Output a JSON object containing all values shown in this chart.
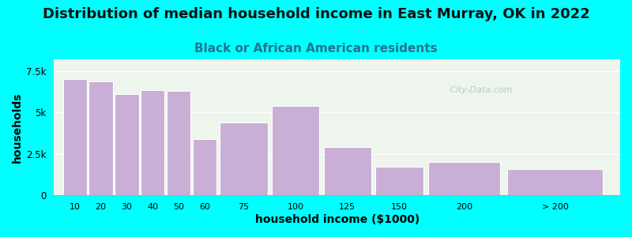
{
  "title": "Distribution of median household income in East Murray, OK in 2022",
  "subtitle": "Black or African American residents",
  "xlabel": "household income ($1000)",
  "ylabel": "households",
  "background_color": "#00FFFF",
  "plot_bg_top": "#e8f5e8",
  "plot_bg_bottom": "#f8f8ff",
  "bar_color": "#c9aed6",
  "bar_edge_color": "#ffffff",
  "categories": [
    "10",
    "20",
    "30",
    "40",
    "50",
    "60",
    "75",
    "100",
    "125",
    "150",
    "200",
    "> 200"
  ],
  "bar_heights": [
    7000,
    6850,
    6100,
    6350,
    6300,
    3400,
    4400,
    5400,
    2900,
    1700,
    2000,
    1600
  ],
  "bar_widths": [
    1,
    1,
    1,
    1,
    1,
    1,
    2,
    2,
    2,
    2,
    3,
    4
  ],
  "bar_lefts": [
    0,
    1,
    2,
    3,
    4,
    5,
    6,
    8,
    10,
    12,
    14,
    17
  ],
  "ylim": [
    0,
    8200
  ],
  "yticks": [
    0,
    2500,
    5000,
    7500
  ],
  "ytick_labels": [
    "0",
    "2.5k",
    "5k",
    "7.5k"
  ],
  "watermark": "City-Data.com",
  "title_fontsize": 13,
  "subtitle_fontsize": 11,
  "axis_label_fontsize": 10
}
